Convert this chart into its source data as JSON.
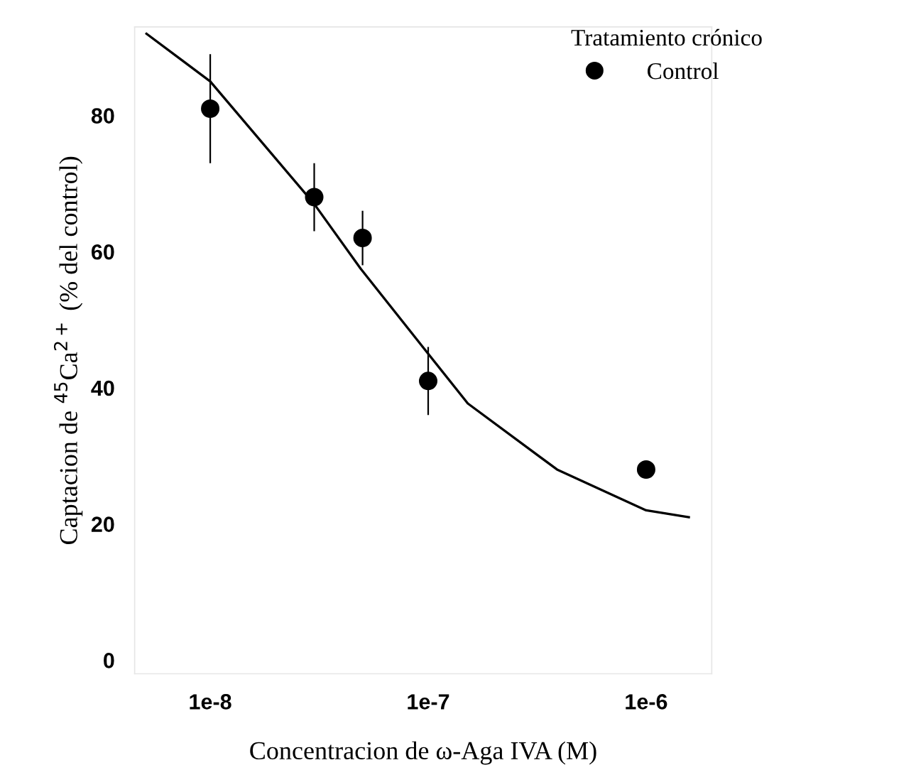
{
  "chart_data": {
    "type": "scatter",
    "xlabel": "Concentracion de ω-Aga IVA (M)",
    "ylabel": "Captacion de $^{45}$Ca$^{2+}$ (% del control)",
    "legend_title": "Tratamiento crónico",
    "log": "x",
    "xlim": [
      4.5e-09,
      2e-06
    ],
    "ylim": [
      -2,
      93
    ],
    "xticks": [
      {
        "value": 1e-08,
        "label": "1e-8"
      },
      {
        "value": 1e-07,
        "label": "1e-7"
      },
      {
        "value": 1e-06,
        "label": "1e-6"
      }
    ],
    "yticks": [
      0,
      20,
      40,
      60,
      80
    ],
    "grid": false,
    "legend": "top right",
    "marker": "circle",
    "series": [
      {
        "name": "Control",
        "color": "#000000",
        "x": [
          1e-08,
          3e-08,
          5e-08,
          1e-07,
          1e-06
        ],
        "values": [
          81,
          68,
          62,
          41,
          28
        ],
        "errors": [
          8,
          5,
          4,
          5,
          null
        ]
      },
      {
        "type": "line",
        "color": "#000000",
        "marker": "none",
        "line_style": "solid",
        "x": [
          5.1e-09,
          1e-08,
          3e-08,
          4.9e-08,
          1e-07,
          1.52e-07,
          3.9e-07,
          1e-06,
          1.57e-06
        ],
        "values": [
          92,
          85,
          67,
          57.5,
          45,
          37.7,
          28,
          22,
          21
        ]
      }
    ]
  }
}
